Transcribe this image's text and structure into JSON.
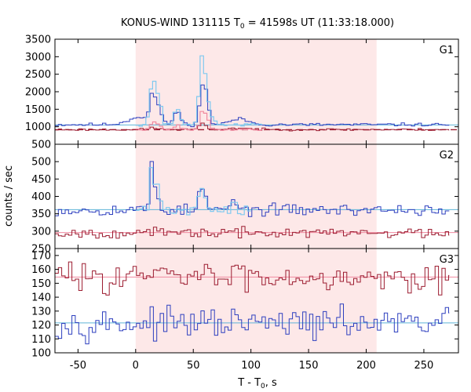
{
  "chart_data": {
    "type": "line",
    "title_main": "KONUS-WIND 131115 T",
    "title_sub": "0",
    "title_rest": " = 41598s UT (11:33:18.000)",
    "xlabel_main": "T - T",
    "xlabel_sub": "0",
    "xlabel_rest": ", s",
    "ylabel": "counts / sec",
    "xlim": [
      -70,
      280
    ],
    "x_ticks": [
      -50,
      0,
      50,
      100,
      150,
      200,
      250
    ],
    "highlight_interval": [
      0,
      209
    ],
    "bin_width": 2.944,
    "colors": {
      "highlight": "#fde8e8",
      "high_series": "#9c1c30",
      "low_series": "#2d3fbf",
      "detail": "#7fc9ef",
      "background_high": "#f08aa0",
      "background_low": "#5fb5d8"
    },
    "panels": [
      {
        "name": "G1",
        "ylim": [
          500,
          3500
        ],
        "y_ticks": [
          500,
          1000,
          1500,
          2000,
          2500,
          3000,
          3500
        ],
        "series": [
          {
            "role": "upper",
            "color": "#2d3fbf",
            "base": 1060,
            "noise": 22,
            "seed": 11,
            "pulses": [
              [
                14,
                1.5,
                160
              ],
              [
                4,
                10,
                220
              ],
              [
                15,
                2.5,
                620
              ],
              [
                20,
                2.5,
                420
              ],
              [
                36,
                3,
                370
              ],
              [
                58,
                2.5,
                1020
              ],
              [
                62,
                2,
                600
              ],
              [
                90,
                8,
                160
              ]
            ]
          },
          {
            "role": "lower",
            "color": "#9c1c30",
            "base": 920,
            "noise": 15,
            "seed": 23,
            "pulses": [
              [
                15,
                3,
                60
              ],
              [
                58,
                3,
                160
              ],
              [
                90,
                10,
                40
              ]
            ]
          },
          {
            "role": "detail",
            "color": "#7fc9ef",
            "base": 1060,
            "noise": 20,
            "seed": 37,
            "range": [
              0,
              110
            ],
            "pulses": [
              [
                12,
                2,
                260
              ],
              [
                15,
                1.8,
                1300
              ],
              [
                20,
                2,
                900
              ],
              [
                36,
                2.5,
                470
              ],
              [
                57,
                2,
                1800
              ],
              [
                61,
                2,
                1100
              ],
              [
                66,
                2,
                200
              ]
            ]
          },
          {
            "role": "detail",
            "color": "#f08aa0",
            "base": 920,
            "noise": 12,
            "seed": 41,
            "range": [
              0,
              110
            ],
            "pulses": [
              [
                15,
                2,
                200
              ],
              [
                20,
                2,
                150
              ],
              [
                36,
                2.5,
                120
              ],
              [
                58,
                2,
                500
              ],
              [
                62,
                2,
                300
              ]
            ]
          }
        ],
        "backgrounds": [
          {
            "value": 1050,
            "color": "#5fb5d8",
            "dashed": false
          },
          {
            "value": 915,
            "color": "#9c1c30",
            "dashed": true
          }
        ]
      },
      {
        "name": "G2",
        "ylim": [
          250,
          550
        ],
        "y_ticks": [
          250,
          300,
          350,
          400,
          450,
          500
        ],
        "series": [
          {
            "role": "upper",
            "color": "#2d3fbf",
            "base": 361,
            "noise": 8,
            "seed": 53,
            "pulses": [
              [
                14,
                1.5,
                130
              ],
              [
                18,
                2,
                55
              ],
              [
                58,
                3,
                60
              ],
              [
                85,
                2,
                30
              ]
            ]
          },
          {
            "role": "lower",
            "color": "#9c1c30",
            "base": 295,
            "noise": 7,
            "seed": 67,
            "pulses": []
          },
          {
            "role": "detail",
            "color": "#7fc9ef",
            "base": 361,
            "noise": 7,
            "seed": 71,
            "range": [
              0,
              100
            ],
            "pulses": [
              [
                14,
                1.5,
                135
              ],
              [
                19,
                2,
                70
              ],
              [
                58,
                3,
                62
              ],
              [
                85,
                2,
                28
              ]
            ]
          }
        ],
        "backgrounds": [
          {
            "value": 362,
            "color": "#5fb5d8",
            "dashed": false
          },
          {
            "value": 296,
            "color": "#f08aa0",
            "dashed": false
          }
        ]
      },
      {
        "name": "G3",
        "ylim": [
          100,
          175
        ],
        "y_ticks": [
          100,
          110,
          120,
          130,
          140,
          150,
          160,
          170
        ],
        "series": [
          {
            "role": "upper",
            "color": "#9c1c30",
            "base": 155,
            "noise": 5,
            "seed": 83,
            "pulses": []
          },
          {
            "role": "lower",
            "color": "#2d3fbf",
            "base": 121,
            "noise": 5,
            "seed": 97,
            "pulses": []
          }
        ],
        "backgrounds": [
          {
            "value": 154.5,
            "color": "#f08aa0",
            "dashed": false
          },
          {
            "value": 121.5,
            "color": "#5fb5d8",
            "dashed": false
          }
        ]
      }
    ]
  }
}
